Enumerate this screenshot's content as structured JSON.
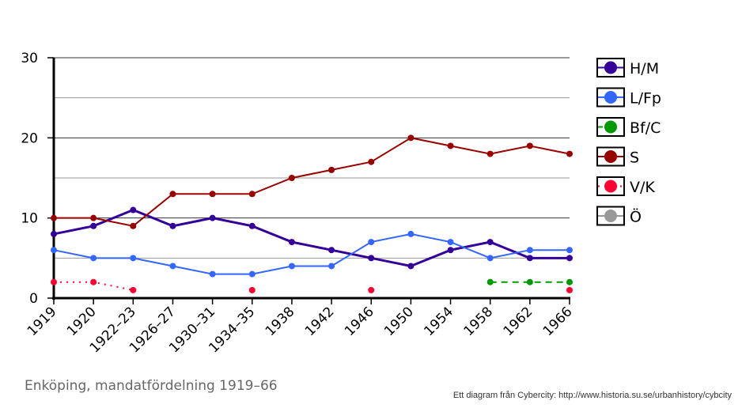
{
  "chart_data": {
    "type": "line",
    "title": "Enköping, mandatfördelning 1919–66",
    "credit": "Ett diagram från Cybercity: http://www.historia.su.se/urbanhistory/cybcity",
    "xlabel": "",
    "ylabel": "",
    "ylim": [
      0,
      30
    ],
    "yticks": [
      0,
      10,
      20,
      30
    ],
    "grid": true,
    "legend_placement": "right",
    "categories": [
      "1919",
      "1920",
      "1922–23",
      "1926–27",
      "1930–31",
      "1934–35",
      "1938",
      "1942",
      "1946",
      "1950",
      "1954",
      "1958",
      "1962",
      "1966"
    ],
    "series": [
      {
        "name": "H/M",
        "color": "#330099",
        "style": "solid-thick",
        "values": [
          8,
          9,
          11,
          9,
          10,
          9,
          7,
          6,
          5,
          4,
          6,
          7,
          5,
          5
        ]
      },
      {
        "name": "L/Fp",
        "color": "#3366ff",
        "style": "solid",
        "values": [
          6,
          5,
          5,
          4,
          3,
          3,
          4,
          4,
          7,
          8,
          7,
          5,
          6,
          6
        ]
      },
      {
        "name": "Bf/C",
        "color": "#009900",
        "style": "dashed",
        "values": [
          null,
          null,
          null,
          null,
          null,
          null,
          null,
          null,
          null,
          null,
          null,
          2,
          2,
          2
        ]
      },
      {
        "name": "S",
        "color": "#990000",
        "style": "solid",
        "values": [
          10,
          10,
          9,
          13,
          13,
          13,
          15,
          16,
          17,
          20,
          19,
          18,
          19,
          18
        ]
      },
      {
        "name": "V/K",
        "color": "#ff0033",
        "style": "dotted",
        "values": [
          2,
          2,
          1,
          null,
          null,
          1,
          null,
          null,
          1,
          null,
          null,
          null,
          null,
          1
        ]
      },
      {
        "name": "Ö",
        "color": "#999999",
        "style": "solid",
        "values": [
          null,
          null,
          null,
          null,
          null,
          null,
          null,
          null,
          null,
          null,
          null,
          null,
          null,
          null
        ]
      }
    ]
  }
}
